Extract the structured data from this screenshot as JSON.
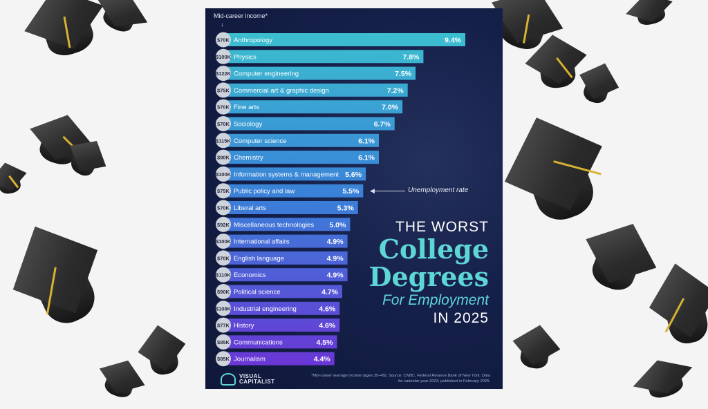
{
  "infographic": {
    "y_header": "Mid-career income*",
    "annotation": "Unemployment rate",
    "title_lines": [
      "THE WORST",
      "College",
      "Degrees",
      "For Employment",
      "IN 2025"
    ],
    "logo_text": "VISUAL CAPITALIST",
    "footnote": "*Mid-career average income (ages 35–45). Source: CNBC, Federal Reserve Bank of New York; Data for calendar year 2023, published in February 2025.",
    "colors": {
      "background": "#15204a",
      "bar_top": "#3bbfcf",
      "bar_bottom": "#6b35d6",
      "accent": "#5fd6d6",
      "income_badge": "#cfd3db",
      "tassel": "#d8b233"
    },
    "decoration": "graduation-caps"
  },
  "chart_data": {
    "type": "bar",
    "orientation": "horizontal",
    "title": "THE WORST College Degrees For Employment IN 2025",
    "categories": [
      "Anthropology",
      "Physics",
      "Computer engineering",
      "Commercial art & graphic design",
      "Fine arts",
      "Sociology",
      "Computer science",
      "Chemistry",
      "Information systems & management",
      "Public policy and law",
      "Liberal arts",
      "Miscellaneous technologies",
      "International affairs",
      "English language",
      "Economics",
      "Political science",
      "Industrial engineering",
      "History",
      "Communications",
      "Journalism"
    ],
    "incomes": [
      "$70K",
      "$100K",
      "$122K",
      "$75K",
      "$70K",
      "$70K",
      "$115K",
      "$90K",
      "$100K",
      "$75K",
      "$70K",
      "$92K",
      "$100K",
      "$70K",
      "$110K",
      "$90K",
      "$108K",
      "$77K",
      "$85K",
      "$85K"
    ],
    "values": [
      9.4,
      7.8,
      7.5,
      7.2,
      7.0,
      6.7,
      6.1,
      6.1,
      5.6,
      5.5,
      5.3,
      5.0,
      4.9,
      4.9,
      4.9,
      4.7,
      4.6,
      4.6,
      4.5,
      4.4
    ],
    "value_labels": [
      "9.4%",
      "7.8%",
      "7.5%",
      "7.2%",
      "7.0%",
      "6.7%",
      "6.1%",
      "6.1%",
      "5.6%",
      "5.5%",
      "5.3%",
      "5.0%",
      "4.9%",
      "4.9%",
      "4.9%",
      "4.7%",
      "4.6%",
      "4.6%",
      "4.5%",
      "4.4%"
    ],
    "unit": "%",
    "series_name": "Unemployment rate",
    "grid": false
  }
}
